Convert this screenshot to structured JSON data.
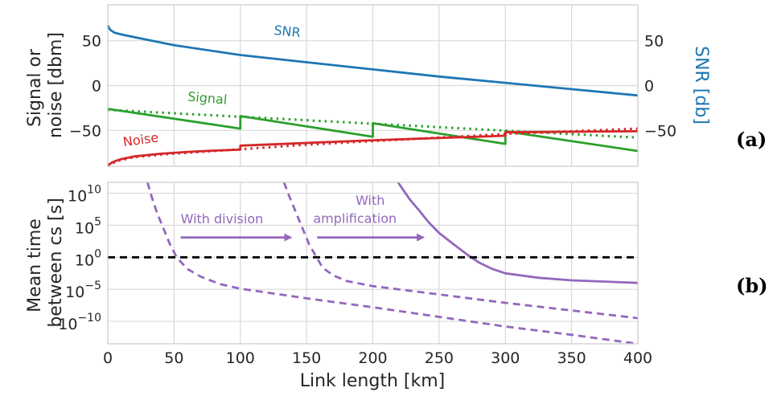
{
  "chart_data": [
    {
      "type": "line",
      "panel_label": "(a)",
      "ylabel_left": [
        "Signal or",
        "noise [dbm]"
      ],
      "ylabel_right": "SNR [db]",
      "xlim": [
        0,
        400
      ],
      "ylim_left": [
        -90,
        90
      ],
      "ylim_right": [
        -90,
        90
      ],
      "yticks_left": [
        50,
        0,
        -50
      ],
      "yticks_right": [
        50,
        0,
        -50
      ],
      "grid": true,
      "colors": {
        "snr": "#1f77b4",
        "signal": "#2ca02c",
        "noise": "#d62728"
      },
      "series": [
        {
          "name": "SNR",
          "style": "solid",
          "axis": "right",
          "x": [
            0,
            1,
            2,
            5,
            10,
            20,
            50,
            100,
            150,
            200,
            250,
            300,
            350,
            400
          ],
          "y": [
            67,
            64,
            62,
            59,
            57,
            54,
            45,
            34,
            26,
            18,
            10,
            3,
            -4,
            -11
          ]
        },
        {
          "name": "Signal",
          "style": "solid",
          "axis": "left",
          "x": [
            0,
            100,
            100,
            200,
            200,
            300,
            300,
            400
          ],
          "y": [
            -26,
            -48,
            -34,
            -57,
            -42,
            -65,
            -51,
            -73
          ]
        },
        {
          "name": "",
          "style": "dotted",
          "axis": "left",
          "x": [
            0,
            400
          ],
          "y": [
            -27,
            -58
          ]
        },
        {
          "name": "Noise",
          "style": "solid",
          "axis": "left",
          "x": [
            0,
            1,
            3,
            6,
            10,
            20,
            40,
            60,
            80,
            100,
            100,
            200,
            200,
            300,
            300,
            400
          ],
          "y": [
            -89,
            -88,
            -86,
            -84,
            -82,
            -79,
            -76,
            -74,
            -72.5,
            -71.5,
            -67,
            -61,
            -61,
            -56,
            -52,
            -51
          ]
        },
        {
          "name": "",
          "style": "dotted",
          "axis": "left",
          "x": [
            0,
            1,
            3,
            6,
            10,
            20,
            40,
            60,
            80,
            100,
            150,
            200,
            250,
            300,
            350,
            400
          ],
          "y": [
            -90,
            -89,
            -87,
            -85,
            -83,
            -80,
            -77,
            -75,
            -73,
            -71,
            -66,
            -62,
            -58,
            -54,
            -51,
            -48
          ]
        }
      ],
      "annotations": [
        {
          "text": "SNR",
          "x": 125,
          "y": 57,
          "color": "#1f77b4",
          "rotate": 6
        },
        {
          "text": "Signal",
          "x": 60,
          "y": -17,
          "color": "#2ca02c",
          "rotate": 5
        },
        {
          "text": "Noise",
          "x": 12,
          "y": -68,
          "color": "#d62728",
          "rotate": -8
        }
      ]
    },
    {
      "type": "line",
      "panel_label": "(b)",
      "ylabel": [
        "Mean time",
        "between cs [s]"
      ],
      "xlabel": "Link length [km]",
      "xlim": [
        0,
        400
      ],
      "xticks": [
        0,
        50,
        100,
        150,
        200,
        250,
        300,
        350,
        400
      ],
      "ylim_log10": [
        -13.5,
        11.7
      ],
      "yticks": [
        {
          "base": "10",
          "exp": "10",
          "value": 10
        },
        {
          "base": "10",
          "exp": "5",
          "value": 5
        },
        {
          "base": "10",
          "exp": "0",
          "value": 0
        },
        {
          "base": "10",
          "exp": "−5",
          "value": -5
        },
        {
          "base": "10",
          "exp": "−10",
          "value": -10
        }
      ],
      "yscale": "log",
      "grid": true,
      "color": "#9467bd",
      "series": [
        {
          "name": "",
          "style": "dashed",
          "color": "#9467bd",
          "x": [
            30,
            33,
            37,
            42,
            47,
            52,
            60,
            70,
            85,
            100,
            150,
            200,
            250,
            300,
            350,
            400
          ],
          "y_log10": [
            11.7,
            9.5,
            7,
            4.5,
            2,
            0,
            -1.8,
            -3,
            -4.2,
            -4.9,
            -6.4,
            -7.8,
            -9.3,
            -10.8,
            -12.1,
            -13.5
          ]
        },
        {
          "name": "",
          "style": "dashed",
          "color": "#9467bd",
          "x": [
            133,
            137,
            142,
            147,
            152,
            157,
            162,
            170,
            180,
            200,
            250,
            300,
            350,
            400
          ],
          "y_log10": [
            11.7,
            9.5,
            7,
            4.5,
            2,
            0.2,
            -1.6,
            -2.8,
            -3.7,
            -4.5,
            -5.8,
            -7.1,
            -8.3,
            -9.5
          ]
        },
        {
          "name": "",
          "style": "solid",
          "color": "#9467bd",
          "x": [
            219,
            223,
            228,
            235,
            242,
            250,
            258,
            265,
            272,
            280,
            290,
            300,
            325,
            350,
            400
          ],
          "y_log10": [
            11.7,
            10.5,
            9,
            7.3,
            5.5,
            3.8,
            2.5,
            1.4,
            0.3,
            -0.8,
            -1.8,
            -2.5,
            -3.2,
            -3.6,
            -4
          ]
        },
        {
          "name": "",
          "style": "dashed",
          "color": "#000000",
          "x": [
            0,
            400
          ],
          "y_log10": [
            0,
            0
          ]
        }
      ],
      "annotations": [
        {
          "text": "With division",
          "x": 55,
          "y_log10": 5.3,
          "color": "#9467bd"
        },
        {
          "text": "With",
          "x": 187,
          "y_log10": 8.2,
          "color": "#9467bd"
        },
        {
          "text": "amplification",
          "x": 155,
          "y_log10": 5.4,
          "color": "#9467bd"
        }
      ],
      "arrows": [
        {
          "x0": 55,
          "x1": 138,
          "y_log10": 3.1,
          "color": "#9467bd"
        },
        {
          "x0": 158,
          "x1": 238,
          "y_log10": 3.1,
          "color": "#9467bd"
        }
      ]
    }
  ]
}
